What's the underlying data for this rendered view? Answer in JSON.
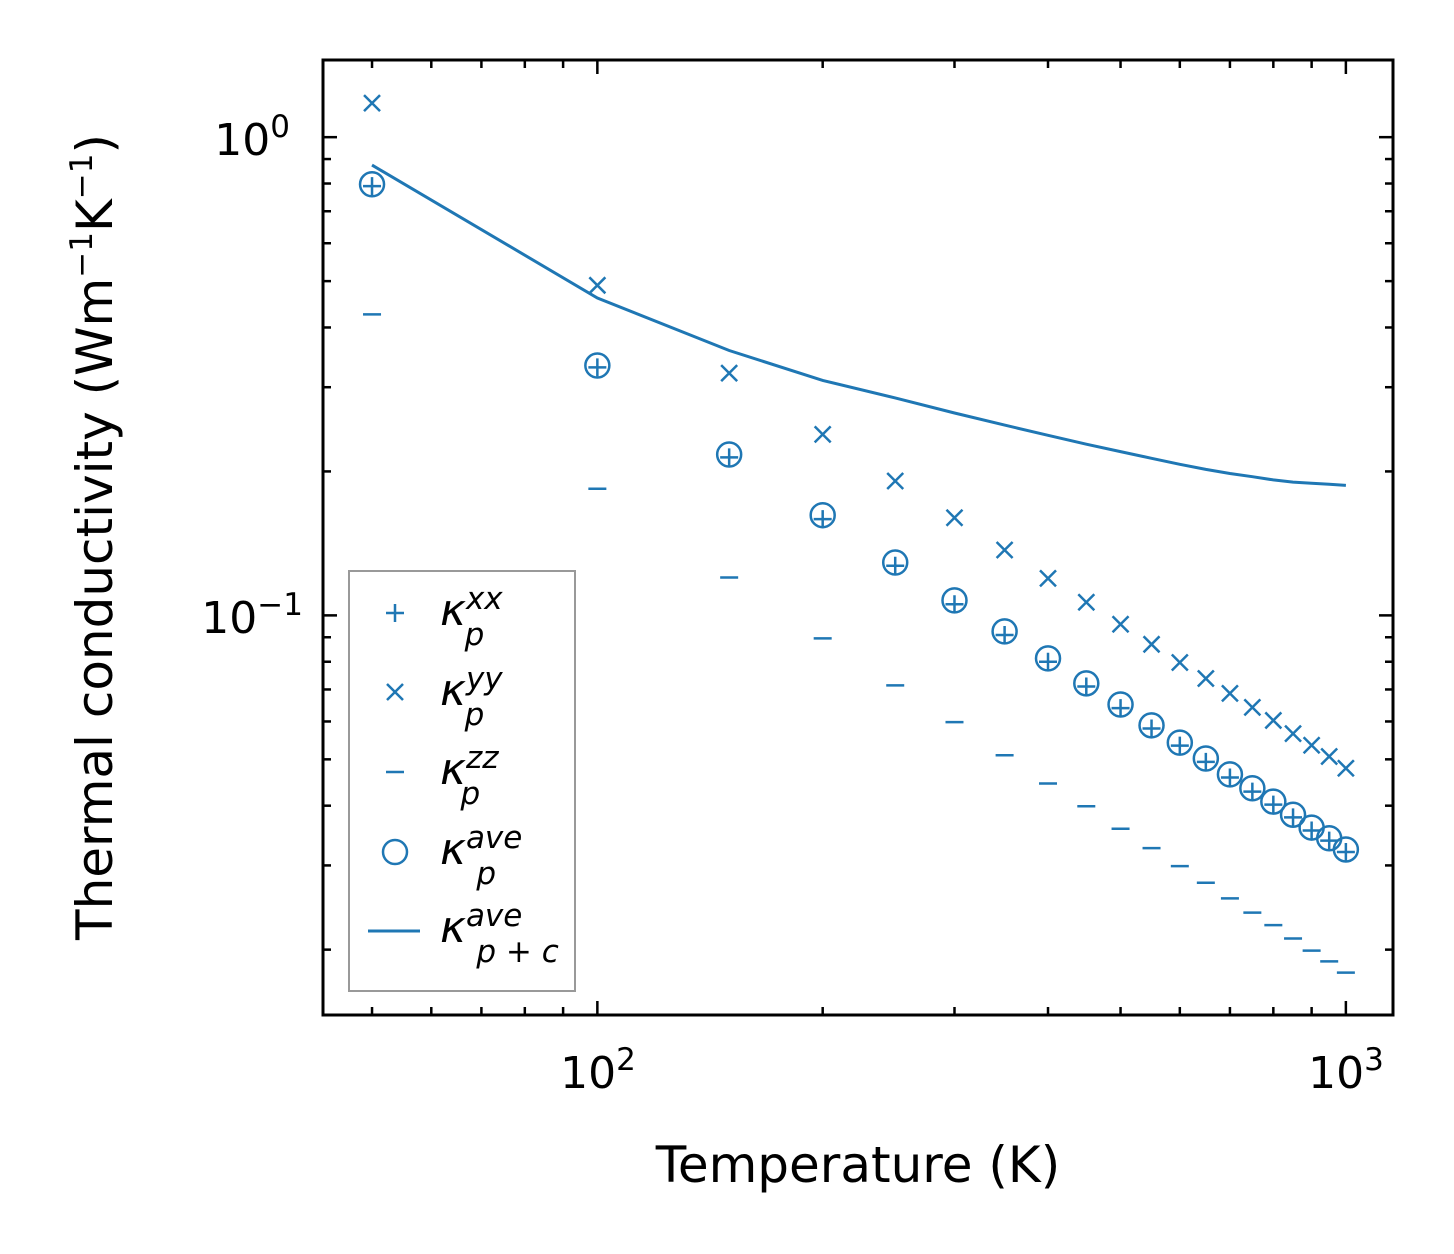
{
  "chart_data": {
    "type": "scatter",
    "xscale": "log",
    "yscale": "log",
    "xlabel": "Temperature (K)",
    "ylabel": "Thermal conductivity (Wm⁻¹K⁻¹)",
    "ylabel_parts": {
      "a": "Thermal conductivity (Wm",
      "e1": "−1",
      "b": "K",
      "e2": "−1",
      "c": ")"
    },
    "xlim": [
      43,
      1156
    ],
    "ylim": [
      0.0146,
      1.45
    ],
    "xticks": [
      {
        "value": 100,
        "base": "10",
        "exp": "2"
      },
      {
        "value": 1000,
        "base": "10",
        "exp": "3"
      }
    ],
    "yticks": [
      {
        "value": 1,
        "base": "10",
        "exp": "0"
      },
      {
        "value": 0.1,
        "base": "10",
        "exp": "−1"
      }
    ],
    "x": [
      50,
      100,
      150,
      200,
      250,
      300,
      350,
      400,
      450,
      500,
      550,
      600,
      650,
      700,
      750,
      800,
      850,
      900,
      950,
      1000
    ],
    "series": [
      {
        "name": "kappa_p^xx",
        "marker": "plus",
        "label": {
          "base": "κ",
          "sup": "xx",
          "sub": "p"
        },
        "values": [
          0.79,
          0.33,
          0.214,
          0.159,
          0.127,
          0.1055,
          0.091,
          0.08,
          0.071,
          0.064,
          0.058,
          0.0534,
          0.0494,
          0.0458,
          0.0428,
          0.0402,
          0.0378,
          0.0355,
          0.0338,
          0.032
        ]
      },
      {
        "name": "kappa_p^yy",
        "marker": "x",
        "label": {
          "base": "κ",
          "sup": "yy",
          "sub": "p"
        },
        "values": [
          1.178,
          0.49,
          0.321,
          0.239,
          0.191,
          0.16,
          0.137,
          0.1195,
          0.1065,
          0.0958,
          0.087,
          0.0797,
          0.0738,
          0.0687,
          0.0642,
          0.0603,
          0.0566,
          0.0535,
          0.0507,
          0.0479
        ]
      },
      {
        "name": "kappa_p^zz",
        "marker": "hline",
        "label": {
          "base": "κ",
          "sup": "zz",
          "sub": "p"
        },
        "values": [
          0.426,
          0.184,
          0.12,
          0.0895,
          0.0714,
          0.0598,
          0.051,
          0.0445,
          0.0399,
          0.0358,
          0.0326,
          0.0299,
          0.0276,
          0.0256,
          0.0239,
          0.0225,
          0.0211,
          0.0199,
          0.0189,
          0.0179
        ]
      },
      {
        "name": "kappa_p^ave",
        "marker": "circle",
        "label": {
          "base": "κ",
          "sup": "ave",
          "sub": "p"
        },
        "values": [
          0.797,
          0.333,
          0.217,
          0.162,
          0.129,
          0.1075,
          0.0926,
          0.0813,
          0.0721,
          0.0651,
          0.0589,
          0.0542,
          0.0502,
          0.0465,
          0.0435,
          0.0408,
          0.0383,
          0.036,
          0.0342,
          0.0324
        ]
      },
      {
        "name": "kappa_p+c^ave",
        "marker": "line",
        "label": {
          "base": "κ",
          "sup": "ave",
          "sub": "p + c"
        },
        "values": [
          0.874,
          0.461,
          0.358,
          0.31,
          0.285,
          0.265,
          0.25,
          0.238,
          0.228,
          0.22,
          0.213,
          0.207,
          0.202,
          0.198,
          0.195,
          0.192,
          0.19,
          0.189,
          0.188,
          0.187
        ]
      }
    ],
    "legend": "lower-left",
    "grid": false,
    "color": "#1f77b4"
  }
}
